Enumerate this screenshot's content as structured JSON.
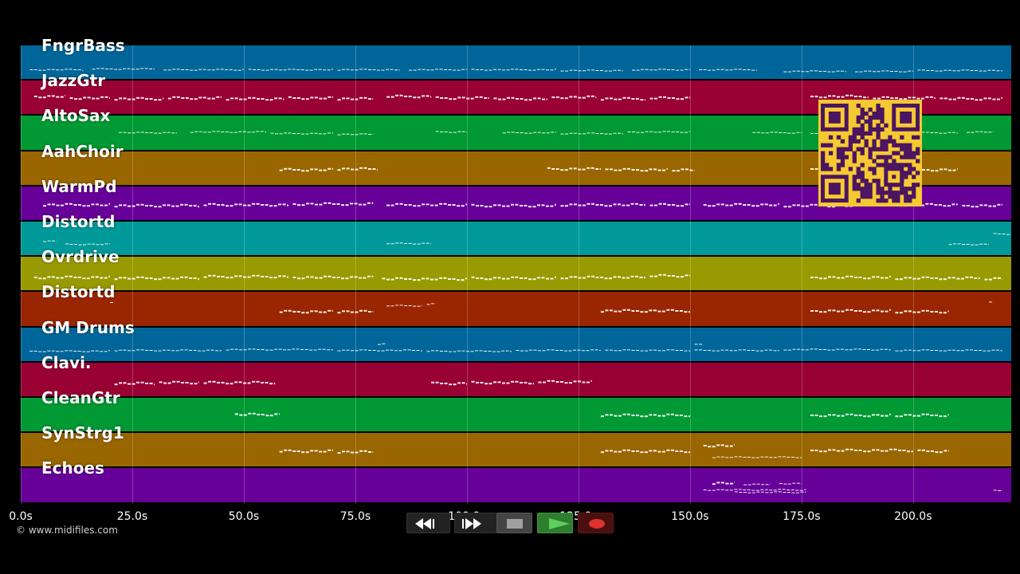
{
  "tracks": [
    {
      "name": "FngrBass",
      "color": "#006699",
      "notes": [
        [
          2,
          14,
          30,
          1
        ],
        [
          16,
          30,
          29,
          1
        ],
        [
          32,
          50,
          30,
          1
        ],
        [
          51,
          70,
          30,
          1
        ],
        [
          71,
          85,
          30,
          1
        ],
        [
          87,
          100,
          30,
          1
        ],
        [
          101,
          120,
          30,
          1
        ],
        [
          121,
          135,
          31,
          1
        ],
        [
          137,
          150,
          30,
          1
        ],
        [
          152,
          165,
          30,
          1
        ],
        [
          171,
          185,
          32,
          1
        ],
        [
          187,
          200,
          32,
          1
        ],
        [
          201,
          220,
          31,
          1
        ]
      ]
    },
    {
      "name": "JazzGtr",
      "color": "#990033",
      "notes": [
        [
          3,
          10,
          19,
          2
        ],
        [
          11,
          20,
          21,
          2
        ],
        [
          21,
          32,
          22,
          2
        ],
        [
          33,
          45,
          21,
          2
        ],
        [
          46,
          59,
          22,
          2
        ],
        [
          60,
          70,
          21,
          2
        ],
        [
          71,
          79,
          22,
          2
        ],
        [
          82,
          92,
          19,
          2
        ],
        [
          93,
          105,
          21,
          2
        ],
        [
          106,
          118,
          22,
          2
        ],
        [
          119,
          129,
          20,
          2
        ],
        [
          130,
          140,
          22,
          2
        ],
        [
          141,
          150,
          21,
          2
        ],
        [
          177,
          190,
          19,
          2
        ],
        [
          191,
          205,
          21,
          2
        ],
        [
          206,
          220,
          22,
          2
        ]
      ]
    },
    {
      "name": "AltoSax",
      "color": "#009933",
      "notes": [
        [
          22,
          35,
          21,
          1
        ],
        [
          38,
          55,
          20,
          1
        ],
        [
          56,
          70,
          22,
          1
        ],
        [
          71,
          79,
          23,
          1
        ],
        [
          93,
          100,
          20,
          1
        ],
        [
          108,
          120,
          21,
          1
        ],
        [
          121,
          135,
          22,
          1
        ],
        [
          136,
          150,
          20,
          1
        ],
        [
          164,
          175,
          21,
          1
        ],
        [
          177,
          195,
          22,
          1
        ],
        [
          196,
          210,
          21,
          1
        ],
        [
          212,
          218,
          20,
          1
        ]
      ]
    },
    {
      "name": "AahChoir",
      "color": "#996600",
      "notes": [
        [
          58,
          70,
          22,
          2
        ],
        [
          71,
          80,
          21,
          2
        ],
        [
          118,
          130,
          21,
          2
        ],
        [
          131,
          145,
          22,
          2
        ],
        [
          146,
          151,
          22,
          2
        ],
        [
          177,
          190,
          21,
          2
        ],
        [
          191,
          200,
          21,
          2
        ],
        [
          202,
          210,
          22,
          2
        ]
      ]
    },
    {
      "name": "WarmPd",
      "color": "#660099",
      "notes": [
        [
          5,
          20,
          22,
          2
        ],
        [
          21,
          40,
          23,
          2
        ],
        [
          41,
          60,
          22,
          2
        ],
        [
          61,
          79,
          21,
          2
        ],
        [
          82,
          100,
          22,
          2
        ],
        [
          101,
          120,
          23,
          2
        ],
        [
          121,
          140,
          22,
          2
        ],
        [
          141,
          150,
          22,
          2
        ],
        [
          153,
          170,
          22,
          2
        ],
        [
          171,
          190,
          23,
          2
        ],
        [
          191,
          210,
          22,
          2
        ],
        [
          211,
          220,
          23,
          2
        ]
      ]
    },
    {
      "name": "Distortd",
      "color": "#009999",
      "notes": [
        [
          5,
          8,
          24,
          1
        ],
        [
          10,
          20,
          28,
          1
        ],
        [
          82,
          92,
          27,
          1
        ],
        [
          208,
          217,
          28,
          1
        ],
        [
          218,
          222,
          15,
          1
        ]
      ]
    },
    {
      "name": "Ovrdrive",
      "color": "#999900",
      "notes": [
        [
          3,
          20,
          25,
          2
        ],
        [
          21,
          40,
          26,
          2
        ],
        [
          41,
          60,
          24,
          2
        ],
        [
          61,
          79,
          25,
          2
        ],
        [
          81,
          100,
          27,
          2
        ],
        [
          101,
          120,
          26,
          2
        ],
        [
          121,
          140,
          25,
          2
        ],
        [
          141,
          150,
          23,
          2
        ],
        [
          177,
          195,
          25,
          2
        ],
        [
          196,
          215,
          26,
          2
        ],
        [
          216,
          220,
          27,
          2
        ]
      ]
    },
    {
      "name": "Distortd",
      "color": "#992600",
      "notes": [
        [
          20,
          21,
          13,
          1
        ],
        [
          58,
          70,
          24,
          2
        ],
        [
          71,
          79,
          24,
          2
        ],
        [
          82,
          90,
          17,
          1
        ],
        [
          91,
          93,
          15,
          1
        ],
        [
          130,
          150,
          23,
          2
        ],
        [
          177,
          195,
          23,
          2
        ],
        [
          196,
          208,
          24,
          2
        ],
        [
          217,
          218,
          13,
          1
        ]
      ]
    },
    {
      "name": "GM Drums",
      "color": "#006699",
      "notes": [
        [
          2,
          20,
          29,
          1
        ],
        [
          21,
          45,
          28,
          1
        ],
        [
          46,
          70,
          27,
          1
        ],
        [
          71,
          90,
          28,
          1
        ],
        [
          91,
          110,
          29,
          1
        ],
        [
          111,
          130,
          28,
          1
        ],
        [
          131,
          150,
          28,
          1
        ],
        [
          151,
          170,
          28,
          1
        ],
        [
          171,
          195,
          27,
          1
        ],
        [
          196,
          220,
          28,
          1
        ],
        [
          80,
          82,
          20,
          1
        ],
        [
          151,
          153,
          21,
          1
        ]
      ]
    },
    {
      "name": "Clavi.",
      "color": "#990033",
      "notes": [
        [
          21,
          30,
          25,
          2
        ],
        [
          31,
          40,
          24,
          2
        ],
        [
          41,
          57,
          24,
          2
        ],
        [
          92,
          100,
          25,
          2
        ],
        [
          101,
          115,
          24,
          2
        ],
        [
          116,
          128,
          23,
          2
        ]
      ]
    },
    {
      "name": "CleanGtr",
      "color": "#009933",
      "notes": [
        [
          48,
          58,
          20,
          2
        ],
        [
          130,
          150,
          21,
          2
        ],
        [
          177,
          195,
          21,
          2
        ],
        [
          196,
          208,
          21,
          2
        ]
      ]
    },
    {
      "name": "SynStrg1",
      "color": "#996600",
      "notes": [
        [
          58,
          70,
          22,
          2
        ],
        [
          71,
          79,
          23,
          2
        ],
        [
          130,
          150,
          22,
          2
        ],
        [
          153,
          160,
          15,
          2
        ],
        [
          155,
          175,
          30,
          1
        ],
        [
          177,
          200,
          21,
          2
        ],
        [
          201,
          208,
          22,
          2
        ]
      ]
    },
    {
      "name": "Echoes",
      "color": "#660099",
      "notes": [
        [
          155,
          160,
          18,
          2
        ],
        [
          162,
          168,
          20,
          1
        ],
        [
          170,
          175,
          19,
          1
        ],
        [
          153,
          176,
          27,
          1
        ],
        [
          160,
          176,
          30,
          1
        ],
        [
          218,
          220,
          28,
          1
        ]
      ]
    }
  ],
  "axis": {
    "max_seconds": 222,
    "ticks": [
      {
        "label": "0.0s",
        "value": 0
      },
      {
        "label": "25.0s",
        "value": 25
      },
      {
        "label": "50.0s",
        "value": 50
      },
      {
        "label": "75.0s",
        "value": 75
      },
      {
        "label": "100.0s",
        "value": 100
      },
      {
        "label": "125.0s",
        "value": 125
      },
      {
        "label": "150.0s",
        "value": 150
      },
      {
        "label": "175.0s",
        "value": 175
      },
      {
        "label": "200.0s",
        "value": 200
      }
    ]
  },
  "copyright": "© www.midifiles.com",
  "qr": {
    "colors": {
      "bg": "#f5c932",
      "fg": "#4b1560"
    }
  },
  "transport": {
    "rewind": {
      "icon": "rewind-icon"
    },
    "forward": {
      "icon": "fast-forward-icon"
    },
    "stop": {
      "icon": "stop-icon"
    },
    "play": {
      "icon": "play-icon",
      "color": "#3c9a3c"
    },
    "record": {
      "icon": "record-icon",
      "color": "#e03030"
    }
  }
}
